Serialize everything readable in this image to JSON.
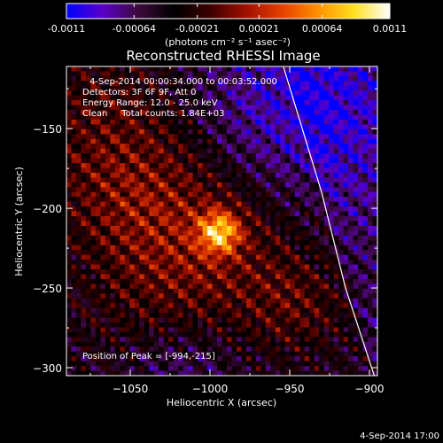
{
  "chart_data": {
    "type": "heatmap",
    "title": "Reconstructed RHESSI Image",
    "colorbar": {
      "ticks": [
        "-0.0011",
        "-0.00064",
        "-0.00021",
        "0.00021",
        "0.00064",
        "0.0011"
      ],
      "min": -0.0011,
      "max": 0.0011,
      "unit_label": "(photons cm⁻² s⁻¹ asec⁻²)",
      "colormap": [
        "#0000ff",
        "#5a00c8",
        "#3c0a3c",
        "#000000",
        "#3c0000",
        "#a01000",
        "#e64000",
        "#ff9000",
        "#ffe020",
        "#ffffff"
      ]
    },
    "xlabel": "Heliocentric X (arcsec)",
    "ylabel": "Heliocentric Y (arcsec)",
    "xlim": [
      -1090,
      -895
    ],
    "ylim": [
      -305,
      -111
    ],
    "x_ticks": [
      -1050,
      -1000,
      -950,
      -900
    ],
    "y_ticks": [
      -150,
      -200,
      -250,
      -300
    ],
    "x_tick_labels": [
      "−1050",
      "−1000",
      "−950",
      "−900"
    ],
    "y_tick_labels": [
      "−150",
      "−200",
      "−250",
      "−300"
    ],
    "annotations": [
      "4-Sep-2014 00:00:34.000 to 00:03:52.000",
      "Detectors: 3F 6F 9F, Att 0",
      "Energy Range: 12.0 - 25.0 keV",
      "Clean     Total counts: 1.84E+03"
    ],
    "peak_label": "Position of Peak = [-994,-215]",
    "peak": {
      "x": -994,
      "y": -215
    },
    "limb_points": [
      [
        -954,
        -111
      ],
      [
        -930,
        -190
      ],
      [
        -915,
        -250
      ],
      [
        -897,
        -305
      ]
    ]
  },
  "footer": {
    "timestamp": "4-Sep-2014 17:00"
  }
}
